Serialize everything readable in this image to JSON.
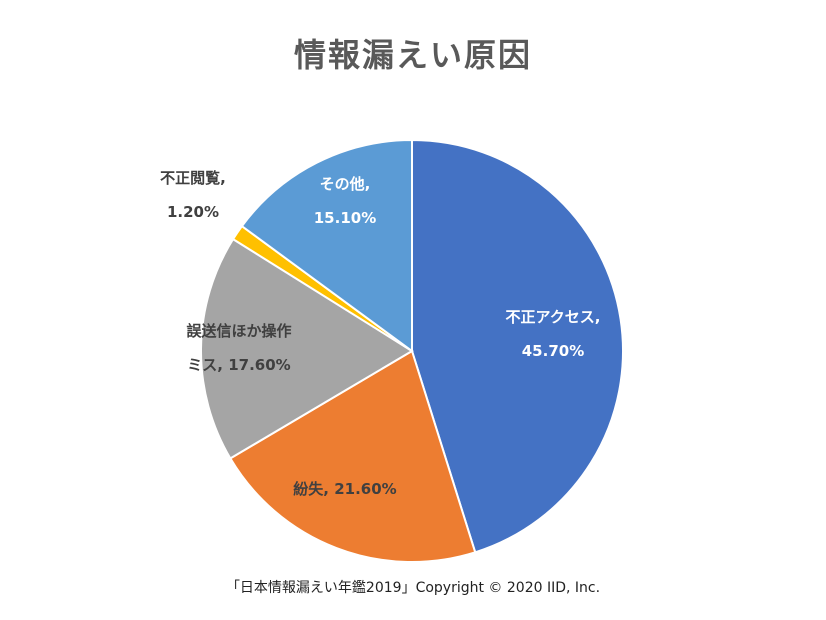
{
  "chart_data": {
    "type": "pie",
    "title": "情報漏えい原因",
    "slices": [
      {
        "label": "不正アクセス",
        "value": 45.7,
        "text": "45.70%",
        "color": "#4472C4",
        "text_color": "#ffffff"
      },
      {
        "label": "紛失",
        "value": 21.6,
        "text": "21.60%",
        "color": "#ED7D31",
        "text_color": "#404040"
      },
      {
        "label": "誤送信ほか操作ミス",
        "value": 17.6,
        "text": "17.60%",
        "color": "#A5A5A5",
        "text_color": "#404040"
      },
      {
        "label": "不正閲覧",
        "value": 1.2,
        "text": "1.20%",
        "color": "#FFC000",
        "text_color": "#404040"
      },
      {
        "label": "その他",
        "value": 15.1,
        "text": "15.10%",
        "color": "#5B9BD5",
        "text_color": "#ffffff"
      }
    ],
    "data_labels": [
      {
        "lines": [
          "不正アクセス,",
          "45.70%"
        ]
      },
      {
        "lines": [
          "紛失, 21.60%"
        ]
      },
      {
        "lines": [
          "誤送信ほか操作",
          "ミス, 17.60%"
        ]
      },
      {
        "lines": [
          "不正閲覧,",
          "1.20%"
        ]
      },
      {
        "lines": [
          "その他,",
          "15.10%"
        ]
      }
    ]
  },
  "credit": "「日本情報漏えい年鑑2019」Copyright © 2020 IID, Inc."
}
